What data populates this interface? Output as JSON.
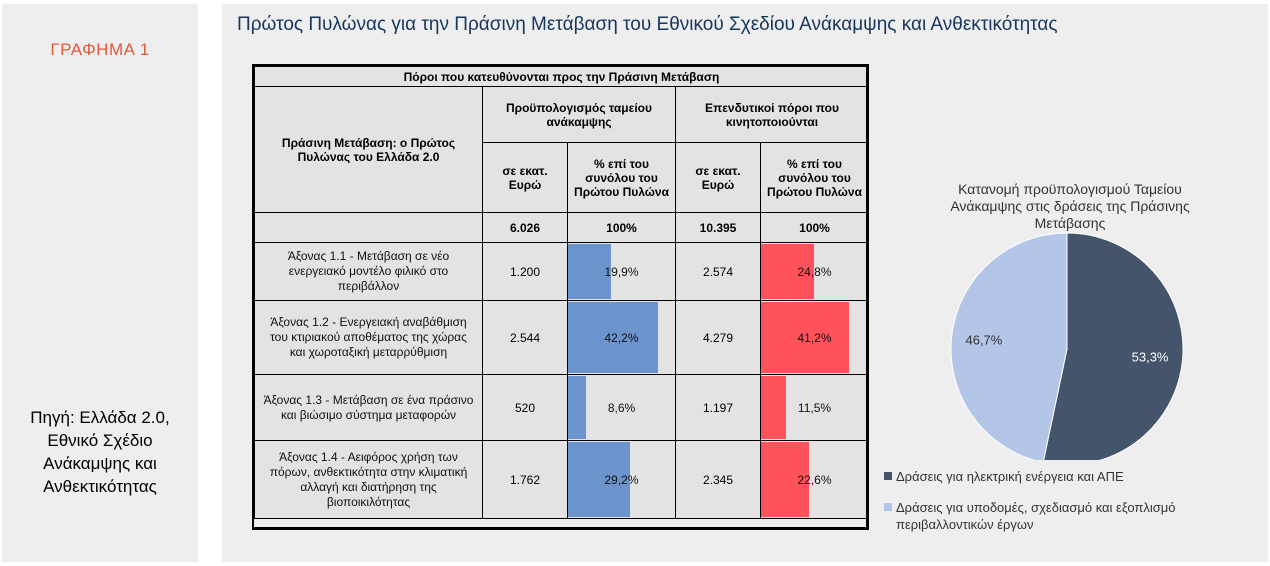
{
  "left_panel": {
    "figure_label": "ΓΡΑΦΗΜΑ 1",
    "source": "Πηγή: Ελλάδα 2.0,\nΕθνικό Σχέδιο\nΑνάκαμψης και\nΑνθεκτικότητας"
  },
  "title": "Πρώτος Πυλώνας για την Πράσινη Μετάβαση  του Εθνικού Σχεδίου Ανάκαμψης και Ανθεκτικότητας",
  "colors": {
    "rrf_bar": "#6b93cc",
    "invest_bar": "#ff525a",
    "pie_dark": "#44546a",
    "pie_light": "#b4c6e7"
  },
  "chart_data": [
    {
      "type": "table",
      "header": "Πόροι που κατευθύνονται προς την Πράσινη Μετάβαση",
      "row_header": "Πράσινη Μετάβαση: ο Πρώτος Πυλώνας του Ελλάδα 2.0",
      "groups": [
        "Προϋπολογισμός ταμείου ανάκαμψης",
        "Επενδυτικοί πόροι που κινητοποιούνται"
      ],
      "subheaders": [
        "σε εκατ. Ευρώ",
        "% επί του συνόλου του Πρώτου Πυλώνα",
        "σε εκατ. Ευρώ",
        "% επί του συνόλου του Πρώτου Πυλώνα"
      ],
      "totals": [
        "6.026",
        "100%",
        "10.395",
        "100%"
      ],
      "rows": [
        {
          "label": "Άξονας 1.1 - Μετάβαση σε νέο ενεργειακό μοντέλο φιλικό στο περιβάλλον",
          "rrf": "1.200",
          "rrf_pct": 19.9,
          "rrf_pct_label": "19,9%",
          "inv": "2.574",
          "inv_pct": 24.8,
          "inv_pct_label": "24,8%"
        },
        {
          "label": "Άξονας 1.2 - Ενεργειακή αναβάθμιση του κτιριακού αποθέματος της χώρας και χωροταξική μεταρρύθμιση",
          "rrf": "2.544",
          "rrf_pct": 42.2,
          "rrf_pct_label": "42,2%",
          "inv": "4.279",
          "inv_pct": 41.2,
          "inv_pct_label": "41,2%"
        },
        {
          "label": "Άξονας 1.3 - Μετάβαση σε ένα πράσινο και βιώσιμο σύστημα μεταφορών",
          "rrf": "520",
          "rrf_pct": 8.6,
          "rrf_pct_label": "8,6%",
          "inv": "1.197",
          "inv_pct": 11.5,
          "inv_pct_label": "11,5%"
        },
        {
          "label": "Άξονας 1.4 - Αειφόρος χρήση των πόρων, ανθεκτικότητα στην κλιματική αλλαγή και διατήρηση της βιοποικιλότητας",
          "rrf": "1.762",
          "rrf_pct": 29.2,
          "rrf_pct_label": "29,2%",
          "inv": "2.345",
          "inv_pct": 22.6,
          "inv_pct_label": "22,6%"
        }
      ]
    },
    {
      "type": "pie",
      "title": "Κατανομή προϋπολογισμού Ταμείου Ανάκαμψης στις δράσεις της Πράσινης Μετάβασης",
      "slices": [
        {
          "label": "Δράσεις για ηλεκτρική ενέργεια και ΑΠΕ",
          "value": 53.3,
          "value_label": "53,3%",
          "color": "#44546a"
        },
        {
          "label": "Δράσεις για υποδομές, σχεδιασμό και εξοπλισμό περιβαλλοντικών έργων",
          "value": 46.7,
          "value_label": "46,7%",
          "color": "#b4c6e7"
        }
      ],
      "legend_position": "bottom"
    }
  ]
}
